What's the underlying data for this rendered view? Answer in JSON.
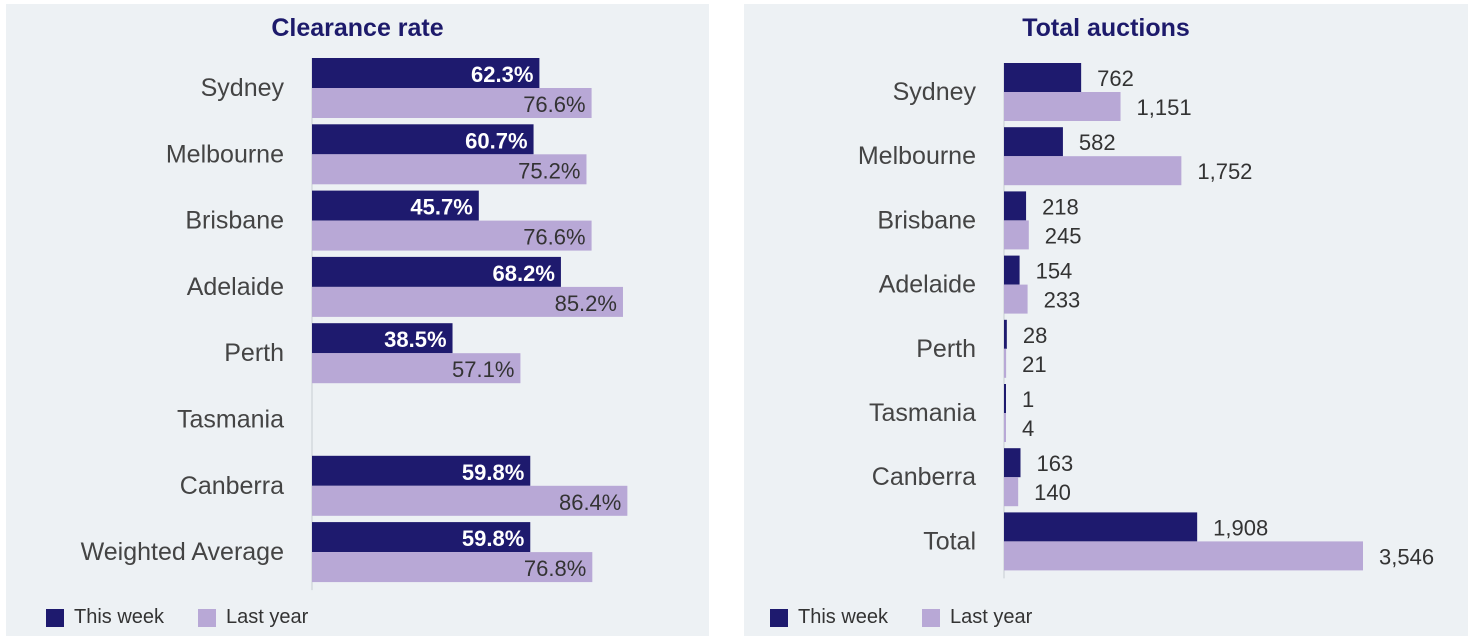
{
  "colors": {
    "this_week": "#1e1a6e",
    "last_year": "#b8a8d6",
    "panel_bg": "#edf1f4",
    "title": "#1d1a6b"
  },
  "chart_data": [
    {
      "type": "bar",
      "orientation": "horizontal",
      "title": "Clearance rate",
      "categories": [
        "Sydney",
        "Melbourne",
        "Brisbane",
        "Adelaide",
        "Perth",
        "Tasmania",
        "Canberra",
        "Weighted Average"
      ],
      "series": [
        {
          "name": "This week",
          "values": [
            62.3,
            60.7,
            45.7,
            68.2,
            38.5,
            null,
            59.8,
            59.8
          ],
          "labels": [
            "62.3%",
            "60.7%",
            "45.7%",
            "68.2%",
            "38.5%",
            "",
            "59.8%",
            "59.8%"
          ]
        },
        {
          "name": "Last year",
          "values": [
            76.6,
            75.2,
            76.6,
            85.2,
            57.1,
            null,
            86.4,
            76.8
          ],
          "labels": [
            "76.6%",
            "75.2%",
            "76.6%",
            "85.2%",
            "57.1%",
            "",
            "86.4%",
            "76.8%"
          ]
        }
      ],
      "xlim": [
        0,
        100
      ],
      "legend": "bottom-left"
    },
    {
      "type": "bar",
      "orientation": "horizontal",
      "title": "Total auctions",
      "categories": [
        "Sydney",
        "Melbourne",
        "Brisbane",
        "Adelaide",
        "Perth",
        "Tasmania",
        "Canberra",
        "Total"
      ],
      "series": [
        {
          "name": "This week",
          "values": [
            762,
            582,
            218,
            154,
            28,
            1,
            163,
            1908
          ],
          "labels": [
            "762",
            "582",
            "218",
            "154",
            "28",
            "1",
            "163",
            "1,908"
          ]
        },
        {
          "name": "Last year",
          "values": [
            1151,
            1752,
            245,
            233,
            21,
            4,
            140,
            3546
          ],
          "labels": [
            "1,151",
            "1,752",
            "245",
            "233",
            "21",
            "4",
            "140",
            "3,546"
          ]
        }
      ],
      "xlim": [
        0,
        3546
      ],
      "legend": "bottom-left"
    }
  ]
}
